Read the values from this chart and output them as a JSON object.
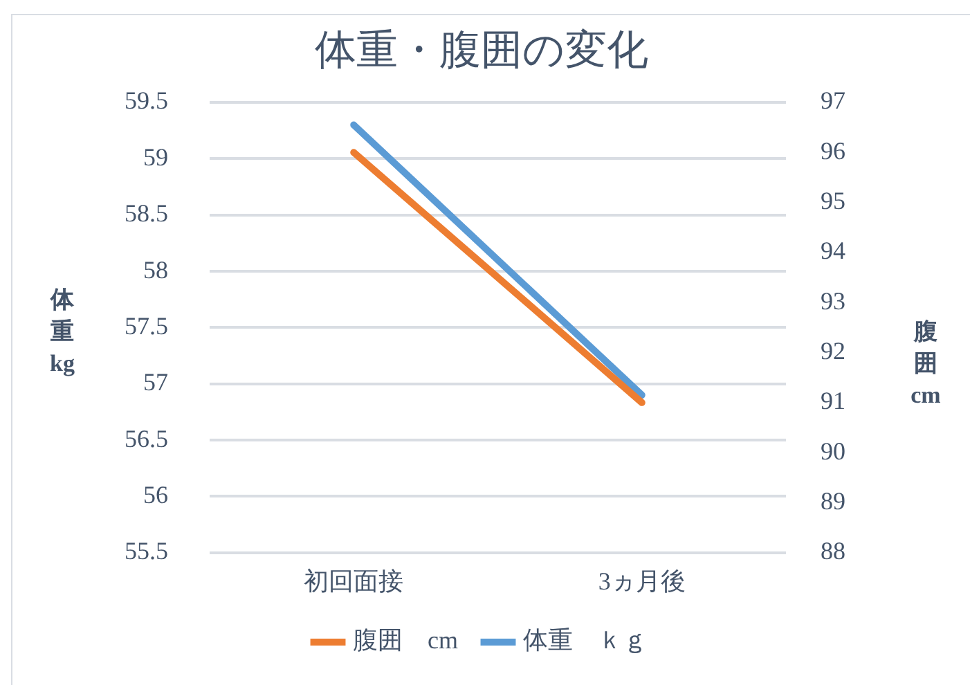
{
  "chart_data": {
    "type": "line",
    "title": "体重・腹囲の変化",
    "ylabel": "体重kg",
    "y2label": "腹囲cm",
    "categories": [
      "初回面接",
      "3ヵ月後"
    ],
    "series": [
      {
        "name": "腹囲　cm",
        "color": "#ed7d31",
        "values": [
          96,
          91
        ],
        "axis": "y2"
      },
      {
        "name": "体重　ｋｇ",
        "color": "#5b9bd5",
        "values": [
          59.3,
          56.9
        ]
      }
    ],
    "ylim": [
      55.5,
      59.5
    ],
    "yticks": [
      55.5,
      56,
      56.5,
      57,
      57.5,
      58,
      58.5,
      59,
      59.5
    ],
    "y2lim": [
      88,
      97
    ],
    "y2ticks": [
      88,
      89,
      90,
      91,
      92,
      93,
      94,
      95,
      96,
      97
    ],
    "grid": "y",
    "legend": "bottom",
    "marker": "none",
    "line_style": "solid"
  }
}
